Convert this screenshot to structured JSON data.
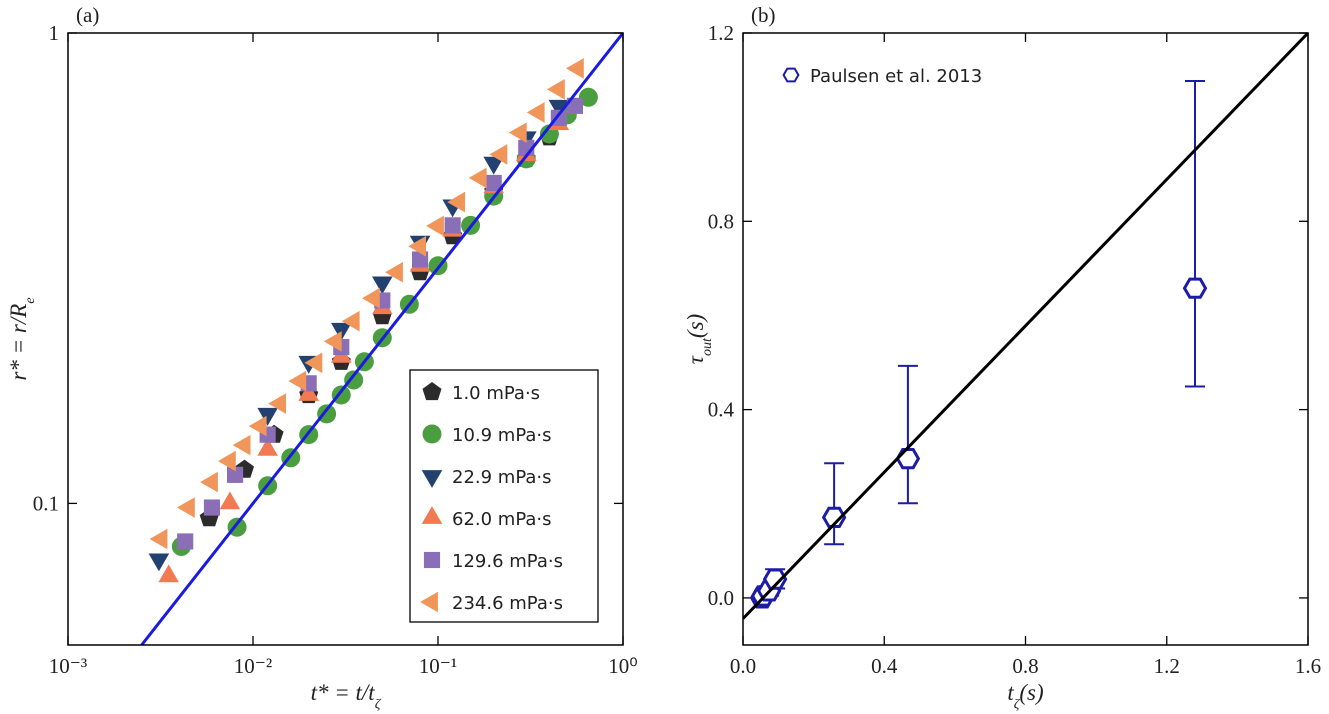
{
  "chart_data": [
    {
      "type": "scatter",
      "panel_label": "(a)",
      "logx": true,
      "logy": true,
      "xlabel": [
        "t* = t/t",
        "ζ"
      ],
      "ylabel": [
        "r* = r/R",
        "e"
      ],
      "xlim": [
        0.001,
        1
      ],
      "ylim": [
        0.05,
        1
      ],
      "xticks": [
        {
          "value": 0.001,
          "label": "10⁻³"
        },
        {
          "value": 0.01,
          "label": "10⁻²"
        },
        {
          "value": 0.1,
          "label": "10⁻¹"
        },
        {
          "value": 1,
          "label": "10⁰"
        }
      ],
      "yticks": [
        0.1,
        1
      ],
      "legend": "lower right",
      "series": [
        {
          "name": "1.0 mPa·s",
          "color": "#2b2b2b",
          "marker": "pentagon",
          "x": [
            0.0058,
            0.009,
            0.013,
            0.02,
            0.03,
            0.05,
            0.08,
            0.12,
            0.2,
            0.3,
            0.4
          ],
          "values": [
            0.093,
            0.118,
            0.14,
            0.17,
            0.2,
            0.25,
            0.31,
            0.37,
            0.46,
            0.54,
            0.6
          ]
        },
        {
          "name": "10.9 mPa·s",
          "color": "#4b9e40",
          "marker": "circle",
          "x": [
            0.0041,
            0.0082,
            0.012,
            0.016,
            0.02,
            0.025,
            0.03,
            0.035,
            0.04,
            0.05,
            0.07,
            0.1,
            0.15,
            0.2,
            0.3,
            0.4,
            0.5,
            0.65
          ],
          "values": [
            0.081,
            0.089,
            0.109,
            0.125,
            0.14,
            0.155,
            0.17,
            0.183,
            0.2,
            0.225,
            0.265,
            0.32,
            0.39,
            0.45,
            0.54,
            0.61,
            0.67,
            0.73
          ]
        },
        {
          "name": "22.9 mPa·s",
          "color": "#22416f",
          "marker": "triangle-down",
          "x": [
            0.0031,
            0.012,
            0.02,
            0.03,
            0.05,
            0.08,
            0.12,
            0.2,
            0.3,
            0.45
          ],
          "values": [
            0.076,
            0.155,
            0.2,
            0.235,
            0.295,
            0.36,
            0.43,
            0.53,
            0.6,
            0.7
          ]
        },
        {
          "name": "62.0 mPa·s",
          "color": "#f27a52",
          "marker": "triangle-up",
          "x": [
            0.0035,
            0.0075,
            0.012,
            0.02,
            0.03,
            0.05,
            0.08,
            0.12,
            0.2,
            0.3,
            0.45
          ],
          "values": [
            0.07,
            0.1,
            0.13,
            0.17,
            0.205,
            0.26,
            0.32,
            0.38,
            0.47,
            0.55,
            0.64
          ]
        },
        {
          "name": "129.6 mPa·s",
          "color": "#8b6fb6",
          "marker": "square",
          "x": [
            0.0043,
            0.006,
            0.008,
            0.012,
            0.02,
            0.03,
            0.05,
            0.08,
            0.12,
            0.2,
            0.3,
            0.45,
            0.55
          ],
          "values": [
            0.083,
            0.098,
            0.115,
            0.14,
            0.18,
            0.215,
            0.27,
            0.33,
            0.39,
            0.48,
            0.57,
            0.66,
            0.7
          ]
        },
        {
          "name": "234.6 mPa·s",
          "color": "#f0965a",
          "marker": "triangle-left",
          "x": [
            0.0032,
            0.0045,
            0.006,
            0.0075,
            0.009,
            0.011,
            0.014,
            0.018,
            0.022,
            0.028,
            0.035,
            0.045,
            0.06,
            0.08,
            0.1,
            0.13,
            0.17,
            0.22,
            0.28,
            0.35,
            0.45,
            0.57
          ],
          "values": [
            0.084,
            0.098,
            0.111,
            0.123,
            0.133,
            0.146,
            0.163,
            0.182,
            0.199,
            0.221,
            0.244,
            0.273,
            0.31,
            0.352,
            0.389,
            0.437,
            0.492,
            0.552,
            0.614,
            0.678,
            0.759,
            0.841
          ]
        }
      ],
      "fit": {
        "color": "#1a1ae0",
        "x": [
          0.0025,
          1
        ],
        "values": [
          0.05,
          1
        ]
      }
    },
    {
      "type": "errorbar",
      "panel_label": "(b)",
      "logx": false,
      "logy": false,
      "xlabel": [
        "t",
        "ζ",
        "(s)"
      ],
      "ylabel": [
        "τ",
        "out",
        "(s)"
      ],
      "xlim": [
        0,
        1.6
      ],
      "ylim": [
        -0.1,
        1.2
      ],
      "xticks": [
        {
          "value": 0,
          "label": "0.0"
        },
        0.4,
        0.8,
        1.2,
        1.6
      ],
      "yticks": [
        {
          "value": 0,
          "label": "0.0"
        },
        0.4,
        0.8,
        1.2
      ],
      "legend": "upper left",
      "series": [
        {
          "name": "Paulsen et al. 2013",
          "color": "#1c1ca6",
          "marker": "hexagon",
          "x": [
            0.054,
            0.057,
            0.074,
            0.091,
            0.258,
            0.467,
            1.28
          ],
          "values": [
            0.0,
            0.004,
            0.015,
            0.04,
            0.171,
            0.296,
            0.658
          ],
          "err_minus": [
            0.005,
            0.005,
            0.01,
            0.02,
            0.057,
            0.095,
            0.209
          ],
          "err_plus": [
            0.005,
            0.005,
            0.01,
            0.021,
            0.115,
            0.197,
            0.44
          ]
        }
      ],
      "fit": {
        "color": "#000000",
        "x": [
          0,
          1.6
        ],
        "values": [
          -0.044,
          1.2
        ]
      }
    }
  ]
}
